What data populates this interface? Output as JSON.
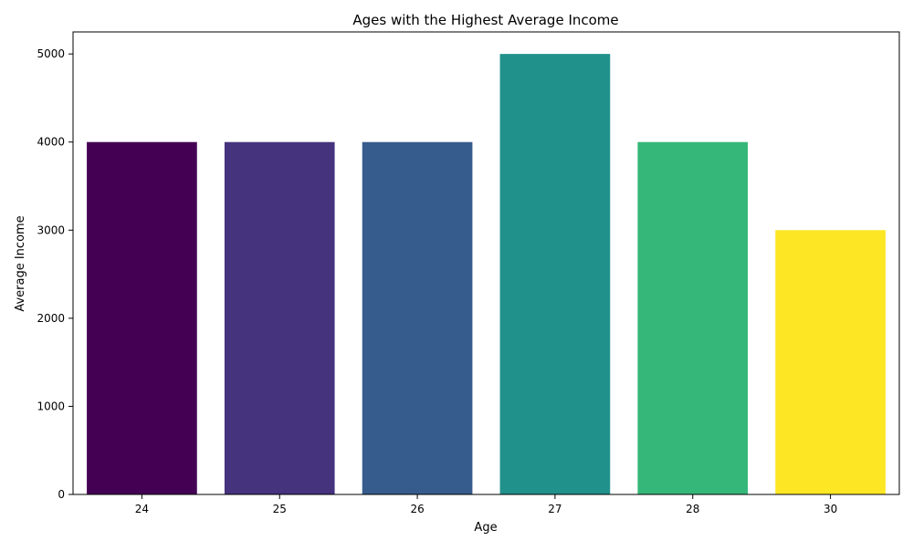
{
  "chart_data": {
    "type": "bar",
    "title": "Ages with the Highest Average Income",
    "xlabel": "Age",
    "ylabel": "Average Income",
    "categories": [
      "24",
      "25",
      "26",
      "27",
      "28",
      "30"
    ],
    "values": [
      4000,
      4000,
      4000,
      5000,
      4000,
      3000
    ],
    "colors": [
      "#440154",
      "#46337e",
      "#365c8d",
      "#21918c",
      "#35b779",
      "#fde725"
    ],
    "ylim": [
      0,
      5250
    ],
    "yticks": [
      0,
      1000,
      2000,
      3000,
      4000,
      5000
    ],
    "grid": false,
    "legend": "none"
  }
}
